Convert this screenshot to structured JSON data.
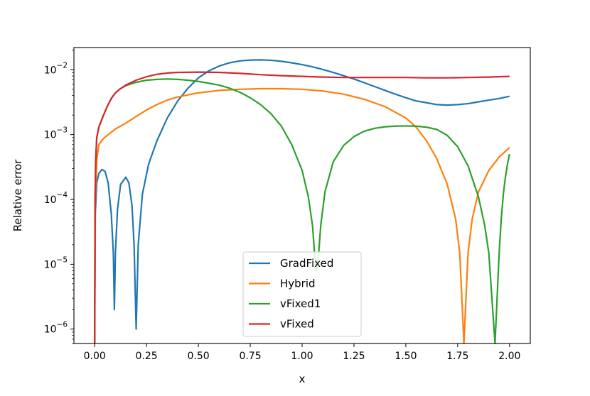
{
  "chart_data": {
    "type": "line",
    "xlabel": "x",
    "ylabel": "Relative error",
    "y_scale": "log",
    "xlim": [
      -0.1,
      2.1
    ],
    "ylim": [
      6e-07,
      0.022
    ],
    "x_ticks": [
      0.0,
      0.25,
      0.5,
      0.75,
      1.0,
      1.25,
      1.5,
      1.75,
      2.0
    ],
    "x_tick_labels": [
      "0.00",
      "0.25",
      "0.50",
      "0.75",
      "1.00",
      "1.25",
      "1.50",
      "1.75",
      "2.00"
    ],
    "y_ticks": [
      1e-06,
      1e-05,
      0.0001,
      0.001,
      0.01
    ],
    "y_tick_labels": [
      {
        "base": "10",
        "exp": "−6"
      },
      {
        "base": "10",
        "exp": "−5"
      },
      {
        "base": "10",
        "exp": "−4"
      },
      {
        "base": "10",
        "exp": "−3"
      },
      {
        "base": "10",
        "exp": "−2"
      }
    ],
    "grid": false,
    "legend_position": "bottom-center",
    "series": [
      {
        "name": "GradFixed",
        "color": "#1f77b4",
        "points": [
          [
            0.0,
            6e-07
          ],
          [
            0.003,
            6e-05
          ],
          [
            0.01,
            0.00018
          ],
          [
            0.02,
            0.00025
          ],
          [
            0.035,
            0.00029
          ],
          [
            0.05,
            0.00027
          ],
          [
            0.065,
            0.00018
          ],
          [
            0.08,
            6e-05
          ],
          [
            0.09,
            1.5e-05
          ],
          [
            0.095,
            2e-06
          ],
          [
            0.1,
            1.5e-05
          ],
          [
            0.11,
            7e-05
          ],
          [
            0.125,
            0.00017
          ],
          [
            0.15,
            0.00022
          ],
          [
            0.165,
            0.00018
          ],
          [
            0.18,
            8e-05
          ],
          [
            0.19,
            2e-05
          ],
          [
            0.2,
            1e-06
          ],
          [
            0.21,
            2e-05
          ],
          [
            0.23,
            0.00012
          ],
          [
            0.26,
            0.00035
          ],
          [
            0.3,
            0.0008
          ],
          [
            0.35,
            0.0018
          ],
          [
            0.4,
            0.0033
          ],
          [
            0.45,
            0.0052
          ],
          [
            0.5,
            0.0075
          ],
          [
            0.55,
            0.0096
          ],
          [
            0.6,
            0.0114
          ],
          [
            0.65,
            0.0128
          ],
          [
            0.7,
            0.0137
          ],
          [
            0.75,
            0.0141
          ],
          [
            0.8,
            0.0142
          ],
          [
            0.85,
            0.014
          ],
          [
            0.9,
            0.0135
          ],
          [
            0.95,
            0.0128
          ],
          [
            1.0,
            0.012
          ],
          [
            1.05,
            0.0111
          ],
          [
            1.1,
            0.0101
          ],
          [
            1.15,
            0.0091
          ],
          [
            1.2,
            0.0081
          ],
          [
            1.25,
            0.0072
          ],
          [
            1.3,
            0.0063
          ],
          [
            1.35,
            0.0055
          ],
          [
            1.4,
            0.0048
          ],
          [
            1.45,
            0.0042
          ],
          [
            1.5,
            0.0037
          ],
          [
            1.55,
            0.0033
          ],
          [
            1.6,
            0.0031
          ],
          [
            1.65,
            0.0029
          ],
          [
            1.7,
            0.00285
          ],
          [
            1.75,
            0.0029
          ],
          [
            1.8,
            0.003
          ],
          [
            1.85,
            0.0032
          ],
          [
            1.9,
            0.0034
          ],
          [
            1.95,
            0.0036
          ],
          [
            2.0,
            0.0039
          ]
        ]
      },
      {
        "name": "Hybrid",
        "color": "#ff7f0e",
        "points": [
          [
            0.0,
            6e-07
          ],
          [
            0.003,
            0.0001
          ],
          [
            0.01,
            0.0004
          ],
          [
            0.02,
            0.0007
          ],
          [
            0.04,
            0.00085
          ],
          [
            0.06,
            0.00097
          ],
          [
            0.1,
            0.00122
          ],
          [
            0.15,
            0.0015
          ],
          [
            0.2,
            0.0019
          ],
          [
            0.25,
            0.0024
          ],
          [
            0.3,
            0.0029
          ],
          [
            0.35,
            0.0034
          ],
          [
            0.4,
            0.0038
          ],
          [
            0.45,
            0.0041
          ],
          [
            0.5,
            0.0044
          ],
          [
            0.6,
            0.0048
          ],
          [
            0.7,
            0.005
          ],
          [
            0.8,
            0.0051
          ],
          [
            0.9,
            0.0051
          ],
          [
            1.0,
            0.005
          ],
          [
            1.1,
            0.0047
          ],
          [
            1.2,
            0.0042
          ],
          [
            1.3,
            0.0035
          ],
          [
            1.4,
            0.0027
          ],
          [
            1.5,
            0.0018
          ],
          [
            1.55,
            0.0013
          ],
          [
            1.6,
            0.0008
          ],
          [
            1.65,
            0.00042
          ],
          [
            1.7,
            0.00017
          ],
          [
            1.74,
            5e-05
          ],
          [
            1.76,
            1.5e-05
          ],
          [
            1.78,
            6e-07
          ],
          [
            1.8,
            1.5e-05
          ],
          [
            1.82,
            5e-05
          ],
          [
            1.85,
            0.00013
          ],
          [
            1.9,
            0.00028
          ],
          [
            1.95,
            0.00045
          ],
          [
            2.0,
            0.00063
          ]
        ]
      },
      {
        "name": "vFixed1",
        "color": "#2ca02c",
        "points": [
          [
            0.0,
            6e-07
          ],
          [
            0.002,
            0.0001
          ],
          [
            0.005,
            0.0004
          ],
          [
            0.01,
            0.0009
          ],
          [
            0.02,
            0.0013
          ],
          [
            0.04,
            0.0019
          ],
          [
            0.06,
            0.0027
          ],
          [
            0.08,
            0.0036
          ],
          [
            0.1,
            0.0044
          ],
          [
            0.12,
            0.005
          ],
          [
            0.15,
            0.0057
          ],
          [
            0.2,
            0.0064
          ],
          [
            0.25,
            0.0069
          ],
          [
            0.3,
            0.0071
          ],
          [
            0.35,
            0.0072
          ],
          [
            0.4,
            0.0071
          ],
          [
            0.45,
            0.0069
          ],
          [
            0.5,
            0.0066
          ],
          [
            0.55,
            0.0062
          ],
          [
            0.6,
            0.0058
          ],
          [
            0.65,
            0.0052
          ],
          [
            0.7,
            0.0045
          ],
          [
            0.75,
            0.0037
          ],
          [
            0.8,
            0.0029
          ],
          [
            0.85,
            0.0021
          ],
          [
            0.9,
            0.00135
          ],
          [
            0.95,
            0.0007
          ],
          [
            1.0,
            0.00028
          ],
          [
            1.03,
            0.00011
          ],
          [
            1.05,
            4e-05
          ],
          [
            1.06,
            1.5e-05
          ],
          [
            1.07,
            8e-06
          ],
          [
            1.08,
            1.5e-05
          ],
          [
            1.09,
            4e-05
          ],
          [
            1.11,
            0.00013
          ],
          [
            1.15,
            0.00038
          ],
          [
            1.2,
            0.00068
          ],
          [
            1.25,
            0.00093
          ],
          [
            1.3,
            0.00113
          ],
          [
            1.35,
            0.00125
          ],
          [
            1.4,
            0.00132
          ],
          [
            1.45,
            0.00135
          ],
          [
            1.5,
            0.00136
          ],
          [
            1.55,
            0.00135
          ],
          [
            1.6,
            0.0013
          ],
          [
            1.65,
            0.0012
          ],
          [
            1.7,
            0.00097
          ],
          [
            1.75,
            0.00065
          ],
          [
            1.8,
            0.00033
          ],
          [
            1.85,
            0.00011
          ],
          [
            1.88,
            4e-05
          ],
          [
            1.9,
            1.5e-05
          ],
          [
            1.93,
            6e-07
          ],
          [
            1.95,
            1.5e-05
          ],
          [
            1.96,
            5e-05
          ],
          [
            1.97,
            0.00012
          ],
          [
            1.98,
            0.00022
          ],
          [
            1.99,
            0.00035
          ],
          [
            2.0,
            0.0005
          ]
        ]
      },
      {
        "name": "vFixed",
        "color": "#d62728",
        "points": [
          [
            0.0,
            6e-07
          ],
          [
            0.002,
            0.0001
          ],
          [
            0.005,
            0.0004
          ],
          [
            0.01,
            0.0009
          ],
          [
            0.02,
            0.0013
          ],
          [
            0.04,
            0.0019
          ],
          [
            0.06,
            0.0027
          ],
          [
            0.08,
            0.0036
          ],
          [
            0.1,
            0.0044
          ],
          [
            0.12,
            0.005
          ],
          [
            0.15,
            0.0058
          ],
          [
            0.2,
            0.0069
          ],
          [
            0.25,
            0.0078
          ],
          [
            0.3,
            0.0085
          ],
          [
            0.35,
            0.0089
          ],
          [
            0.4,
            0.0091
          ],
          [
            0.5,
            0.0092
          ],
          [
            0.6,
            0.0091
          ],
          [
            0.7,
            0.0088
          ],
          [
            0.8,
            0.0084
          ],
          [
            0.9,
            0.0081
          ],
          [
            1.0,
            0.0079
          ],
          [
            1.1,
            0.0077
          ],
          [
            1.2,
            0.0076
          ],
          [
            1.3,
            0.0076
          ],
          [
            1.4,
            0.0076
          ],
          [
            1.5,
            0.0076
          ],
          [
            1.6,
            0.0075
          ],
          [
            1.7,
            0.0075
          ],
          [
            1.8,
            0.0076
          ],
          [
            1.9,
            0.0077
          ],
          [
            2.0,
            0.0079
          ]
        ]
      }
    ]
  }
}
